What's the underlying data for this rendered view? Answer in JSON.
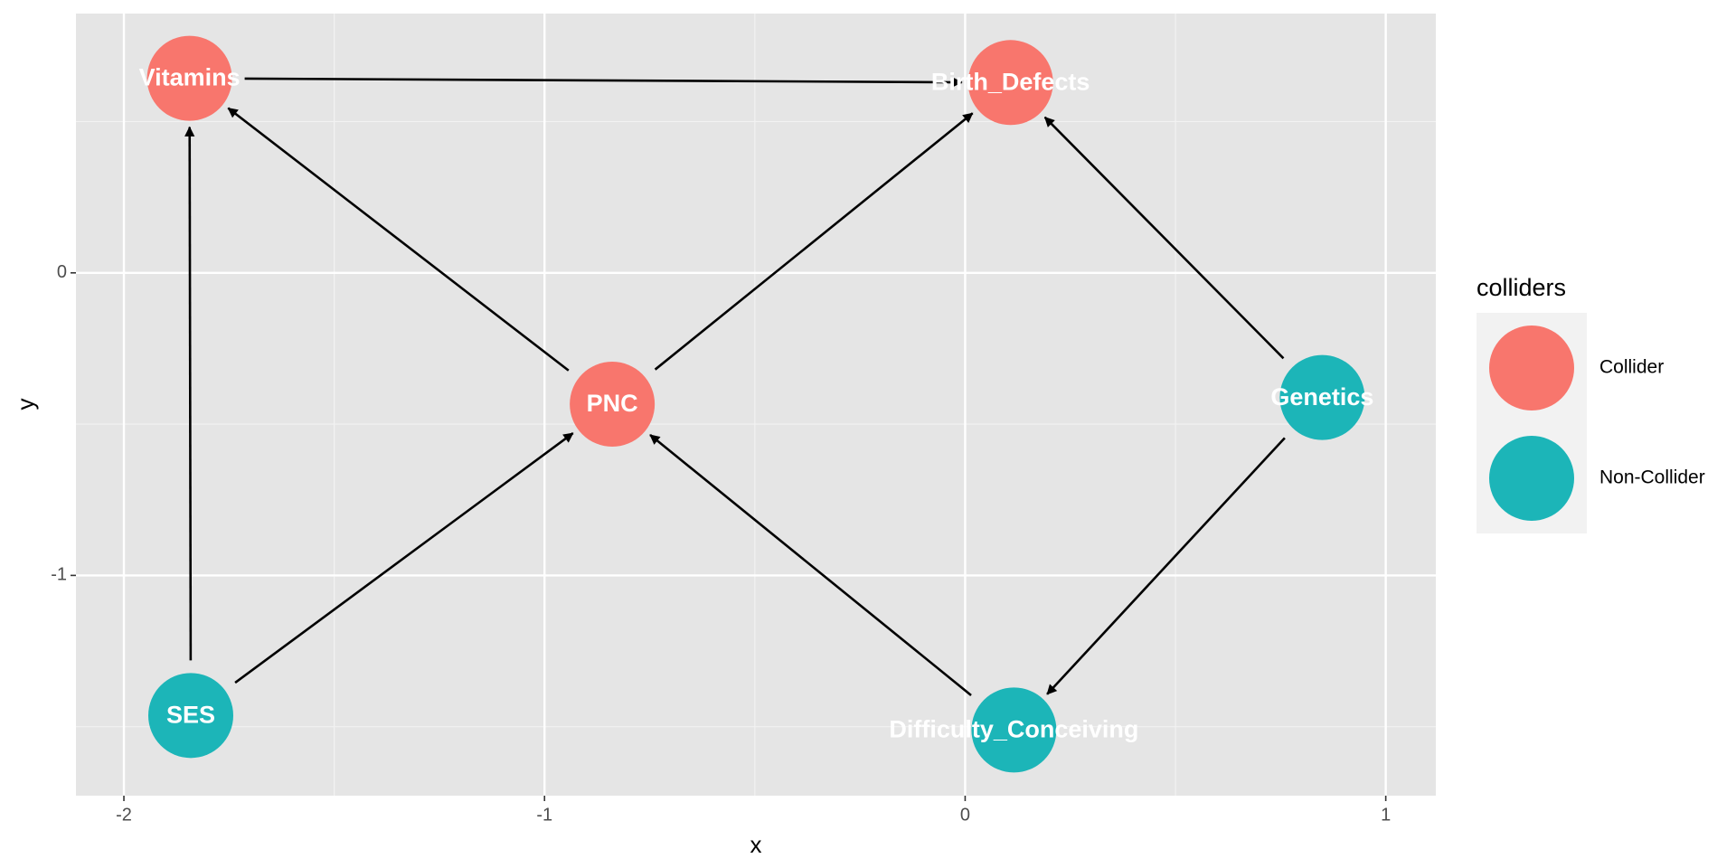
{
  "chart_data": {
    "type": "dag",
    "x_label": "x",
    "y_label": "y",
    "xlim": [
      -2.114,
      1.119
    ],
    "ylim": [
      -1.728,
      0.857
    ],
    "xticks": [
      -2,
      -1,
      0,
      1
    ],
    "yticks": [
      0,
      -1
    ],
    "x_minor_ticks": [
      -1.5,
      -0.5,
      0.5
    ],
    "y_minor_ticks": [
      0.5,
      -0.5,
      -1.5
    ],
    "grid": true,
    "legend_title": "colliders",
    "legend_position": "right",
    "series": [
      {
        "name": "Collider",
        "color": "#F8766D",
        "points": [
          {
            "label": "Vitamins",
            "x": -1.844,
            "y": 0.643
          },
          {
            "label": "Birth_Defects",
            "x": 0.108,
            "y": 0.629
          },
          {
            "label": "PNC",
            "x": -0.839,
            "y": -0.434
          }
        ]
      },
      {
        "name": "Non-Collider",
        "color": "#1CB5B8",
        "points": [
          {
            "label": "Genetics",
            "x": 0.849,
            "y": -0.412
          },
          {
            "label": "SES",
            "x": -1.841,
            "y": -1.463
          },
          {
            "label": "Difficulty_Conceiving",
            "x": 0.116,
            "y": -1.511
          }
        ]
      }
    ],
    "edges": [
      {
        "from": "SES",
        "to": "Vitamins"
      },
      {
        "from": "SES",
        "to": "PNC"
      },
      {
        "from": "PNC",
        "to": "Vitamins"
      },
      {
        "from": "PNC",
        "to": "Birth_Defects"
      },
      {
        "from": "Vitamins",
        "to": "Birth_Defects"
      },
      {
        "from": "Genetics",
        "to": "Birth_Defects"
      },
      {
        "from": "Genetics",
        "to": "Difficulty_Conceiving"
      },
      {
        "from": "Difficulty_Conceiving",
        "to": "PNC"
      }
    ]
  }
}
